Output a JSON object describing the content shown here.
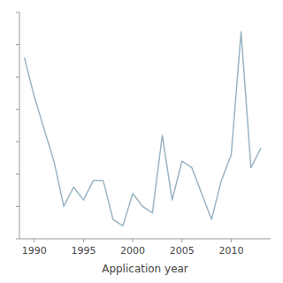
{
  "chart_data": {
    "type": "line",
    "x_label": "Application year",
    "x": [
      1989,
      1990,
      1991,
      1992,
      1993,
      1994,
      1995,
      1996,
      1997,
      1998,
      1999,
      2000,
      2001,
      2002,
      2003,
      2004,
      2005,
      2006,
      2007,
      2008,
      2009,
      2010,
      2011,
      2012,
      2013
    ],
    "values": [
      28,
      22,
      17,
      12,
      5,
      8,
      6,
      9,
      9,
      3,
      2,
      7,
      5,
      4,
      16,
      6,
      12,
      11,
      7,
      3,
      9,
      13,
      32,
      11,
      14
    ],
    "color": "#9ab4c4",
    "xlim": [
      1988.5,
      2014.0
    ],
    "ylim": [
      0,
      35
    ],
    "xticks": [
      1990,
      1995,
      2000,
      2005,
      2010
    ],
    "yticks": [
      0,
      5,
      10,
      15,
      20,
      25,
      30,
      35
    ],
    "tick_labels": "x",
    "grid": false
  }
}
